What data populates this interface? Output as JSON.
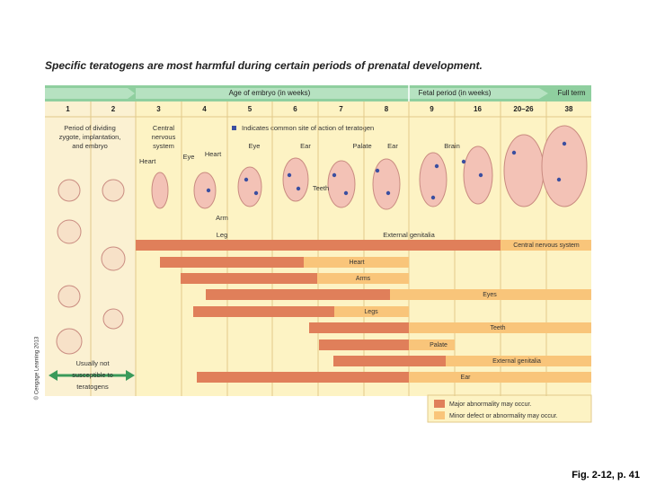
{
  "title": "Specific teratogens are most harmful during certain periods of prenatal development.",
  "header": {
    "embryo_period": "Age of embryo (in weeks)",
    "fetal_period": "Fetal period (in weeks)",
    "full_term": "Full term"
  },
  "weeks": [
    "1",
    "2",
    "3",
    "4",
    "5",
    "6",
    "7",
    "8",
    "9",
    "16",
    "20–26",
    "38"
  ],
  "column_notes": {
    "zygote": [
      "Period of dividing",
      "zygote, implantation,",
      "and embryo"
    ],
    "cns": [
      "Central",
      "nervous",
      "system"
    ]
  },
  "legend_key": "Indicates common site of action of teratogen",
  "site_labels": [
    "Heart",
    "Eye",
    "Heart",
    "Eye",
    "Ear",
    "Palate",
    "Ear",
    "Brain",
    "Teeth",
    "Arm",
    "Leg",
    "External genitalia"
  ],
  "bars": [
    "Central nervous system",
    "Heart",
    "Arms",
    "Eyes",
    "Legs",
    "Teeth",
    "Palate",
    "External genitalia",
    "Ear"
  ],
  "note": [
    "Usually not",
    "susceptible to",
    "teratogens"
  ],
  "legend": {
    "major": "Major abnormality may occur.",
    "minor": "Minor defect or abnormality may occur."
  },
  "copyright": "© Cengage Learning 2013",
  "caption": "Fig. 2-12, p. 41"
}
